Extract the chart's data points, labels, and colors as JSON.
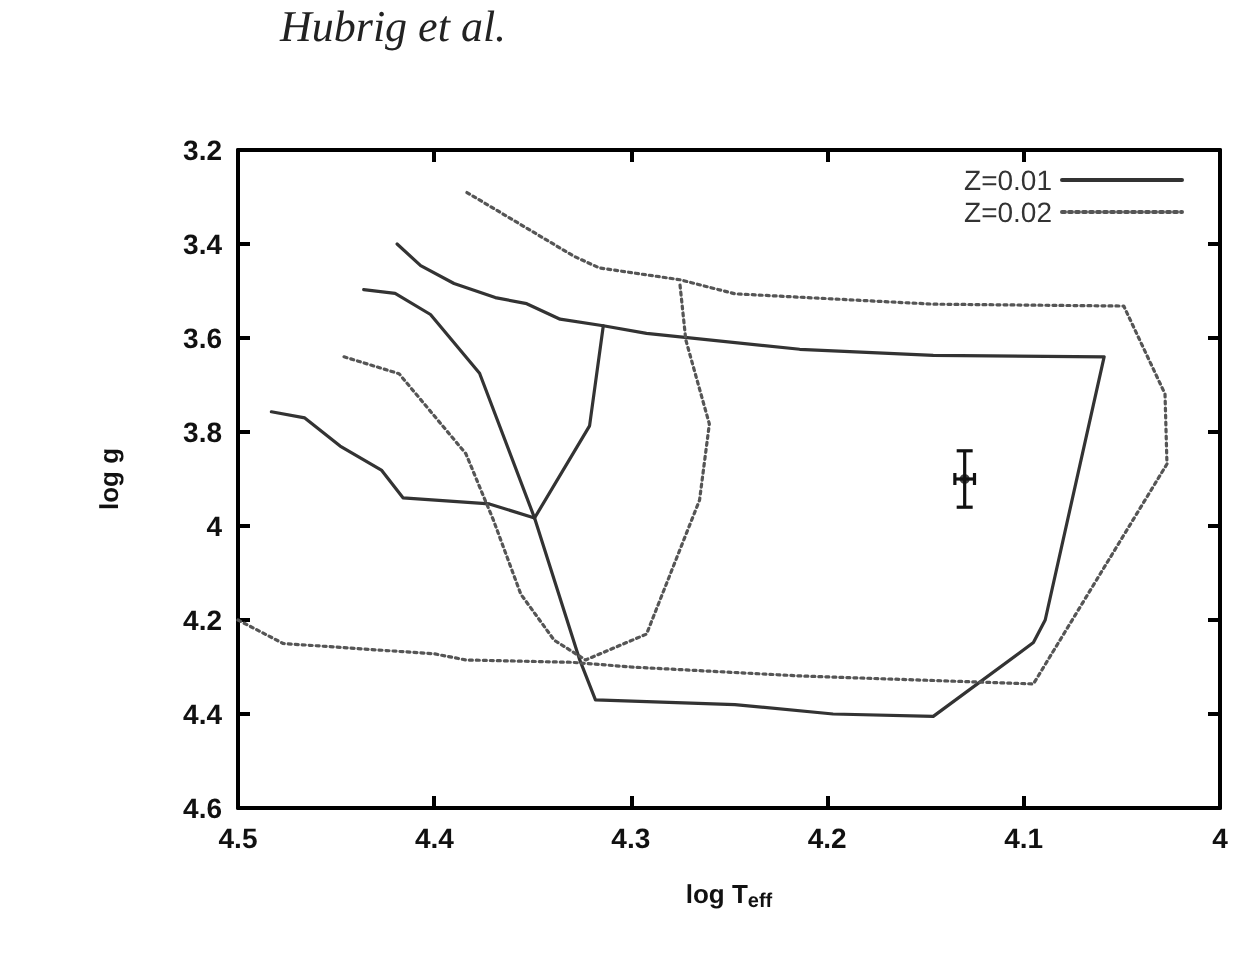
{
  "chart_data": {
    "type": "line",
    "xlabel": "log T$_{eff}$",
    "ylabel": "log g",
    "annotations": [
      "Hubrig et al."
    ],
    "xlim": [
      4.5,
      4.0
    ],
    "xticks": [
      4.5,
      4.4,
      4.3,
      4.2,
      4.1,
      4
    ],
    "ylim": [
      4.6,
      3.2
    ],
    "yticks": [
      3.2,
      3.4,
      3.6,
      3.8,
      4,
      4.2,
      4.4,
      4.6
    ],
    "grid": false,
    "legend": "top right",
    "marker": "none",
    "series": [
      {
        "name": "Z=0.01",
        "color": "#333333",
        "line_style": "solid",
        "x": [
          4.483,
          4.466,
          4.448,
          4.427,
          4.416,
          4.372,
          4.349
        ],
        "values": [
          3.757,
          3.77,
          3.83,
          3.881,
          3.94,
          3.953,
          3.983
        ]
      },
      {
        "color": "#333333",
        "line_style": "solid",
        "x": [
          4.436,
          4.42,
          4.402,
          4.377,
          4.349,
          4.326,
          4.318,
          4.247,
          4.197,
          4.146,
          4.095,
          4.089,
          4.059,
          4.146,
          4.214,
          4.292,
          4.314,
          4.336,
          4.353,
          4.369,
          4.39,
          4.407,
          4.419
        ],
        "values": [
          3.497,
          3.505,
          3.55,
          3.675,
          3.983,
          4.285,
          4.37,
          4.38,
          4.4,
          4.405,
          4.248,
          4.2,
          3.64,
          3.637,
          3.624,
          3.59,
          3.574,
          3.56,
          3.527,
          3.514,
          3.484,
          3.446,
          3.4
        ]
      },
      {
        "color": "#333333",
        "line_style": "solid",
        "x": [
          4.314,
          4.321,
          4.349
        ],
        "values": [
          3.574,
          3.787,
          3.983
        ]
      },
      {
        "name": "Z=0.02",
        "color": "#555555",
        "line_style": "dotted",
        "x": [
          4.5,
          4.477,
          4.4,
          4.384,
          4.33,
          4.3,
          4.214,
          4.095,
          4.027,
          4.028,
          4.049,
          4.146,
          4.247,
          4.275,
          4.316,
          4.329,
          4.384
        ],
        "values": [
          4.2,
          4.25,
          4.272,
          4.285,
          4.29,
          4.3,
          4.319,
          4.336,
          3.868,
          3.719,
          3.532,
          3.528,
          3.506,
          3.476,
          3.451,
          3.426,
          3.289
        ]
      },
      {
        "color": "#555555",
        "line_style": "dotted",
        "x": [
          4.446,
          4.418,
          4.384,
          4.37,
          4.356,
          4.339,
          4.323,
          4.292,
          4.265,
          4.26,
          4.272,
          4.275
        ],
        "values": [
          3.64,
          3.676,
          3.846,
          3.987,
          4.145,
          4.243,
          4.285,
          4.23,
          3.945,
          3.783,
          3.604,
          3.485
        ]
      },
      {
        "type": "scatter",
        "marker": "circle",
        "color": "#111111",
        "x": [
          4.13
        ],
        "values": [
          3.9
        ],
        "errors": [
          0.06
        ],
        "xerrors": [
          0.005
        ]
      }
    ]
  }
}
